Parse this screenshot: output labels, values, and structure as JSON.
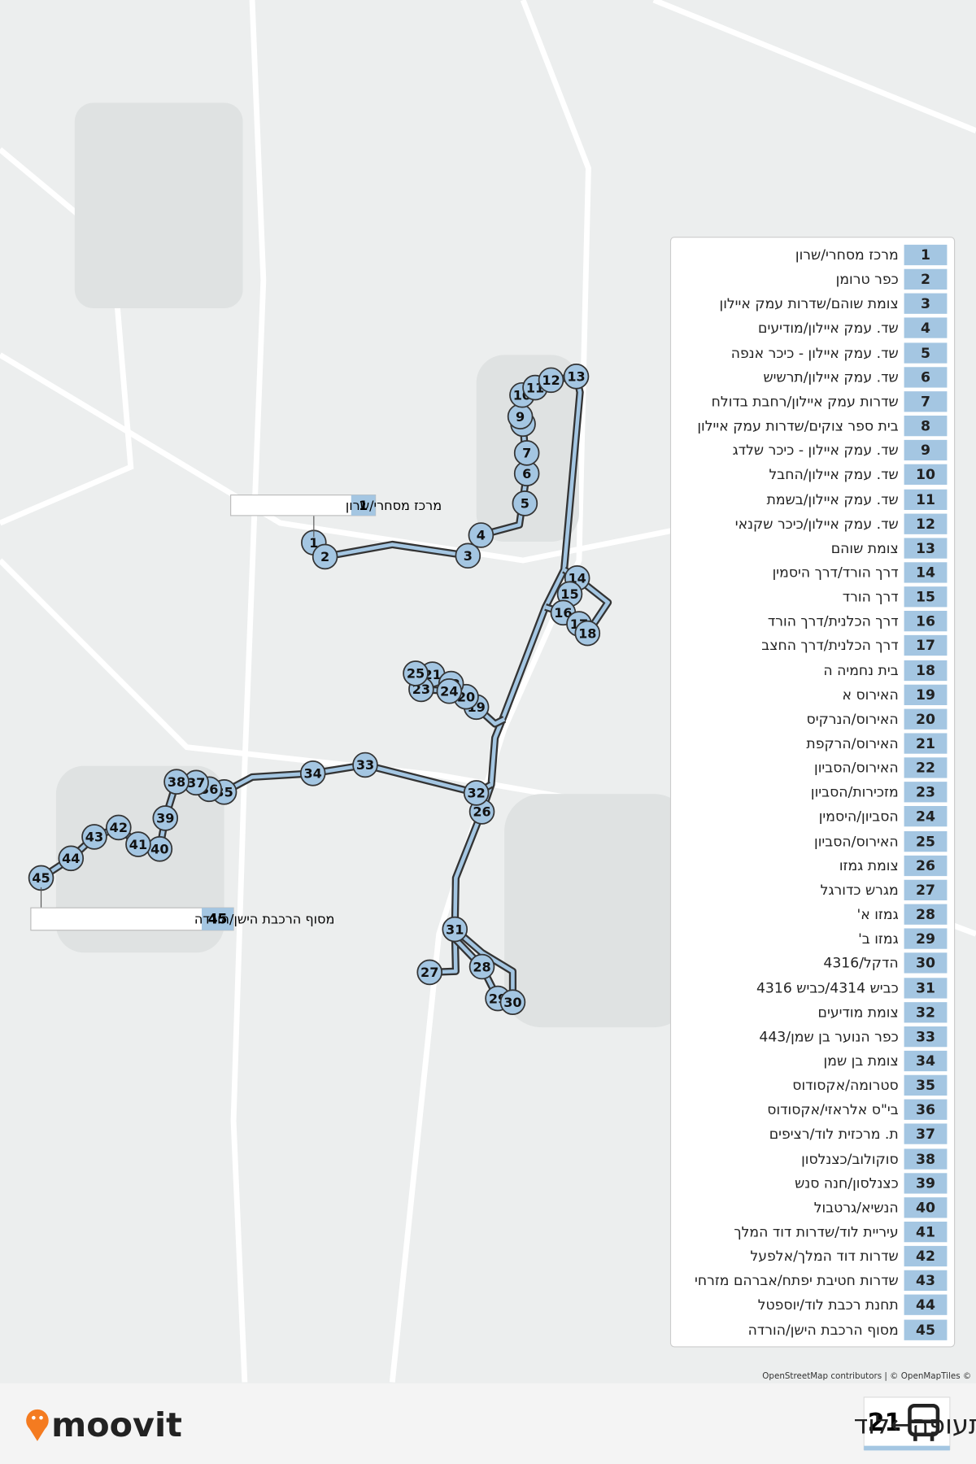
{
  "route": {
    "number": "21",
    "name": "קרית שדה התעופה←לוד"
  },
  "stops": [
    {
      "number": "1",
      "name": "מרכז מסחרי/שרון"
    },
    {
      "number": "2",
      "name": "כפר טרומן"
    },
    {
      "number": "3",
      "name": "צומת שוהם/שדרות עמק איילון"
    },
    {
      "number": "4",
      "name": "שד. עמק איילון/מודיעים"
    },
    {
      "number": "5",
      "name": "שד. עמק איילון - כיכר אנפה"
    },
    {
      "number": "6",
      "name": "שד. עמק איילון/תרשיש"
    },
    {
      "number": "7",
      "name": "שדרות עמק איילון/רחבת בדולח"
    },
    {
      "number": "8",
      "name": "בית ספר צוקים/שדרות עמק איילון"
    },
    {
      "number": "9",
      "name": "שד. עמק איילון - כיכר שלדג"
    },
    {
      "number": "10",
      "name": "שד. עמק איילון/החבל"
    },
    {
      "number": "11",
      "name": "שד. עמק איילון/בשמת"
    },
    {
      "number": "12",
      "name": "שד. עמק איילון/כיכר שקנאי"
    },
    {
      "number": "13",
      "name": "צומת שוהם"
    },
    {
      "number": "14",
      "name": "דרך הורד/דרך היסמין"
    },
    {
      "number": "15",
      "name": "דרך הורד"
    },
    {
      "number": "16",
      "name": "דרך הכלנית/דרך הורד"
    },
    {
      "number": "17",
      "name": "דרך הכלנית/דרך החצב"
    },
    {
      "number": "18",
      "name": "בית נחמיה ה"
    },
    {
      "number": "19",
      "name": "האירוס א"
    },
    {
      "number": "20",
      "name": "האירוס/הנרקיס"
    },
    {
      "number": "21",
      "name": "האירוס/הרקפת"
    },
    {
      "number": "22",
      "name": "האירוס/הסביון"
    },
    {
      "number": "23",
      "name": "מזכירות/הסביון"
    },
    {
      "number": "24",
      "name": "הסביון/היסמין"
    },
    {
      "number": "25",
      "name": "האירוס/הסביון"
    },
    {
      "number": "26",
      "name": "צומת גמזו"
    },
    {
      "number": "27",
      "name": "מגרש כדורגל"
    },
    {
      "number": "28",
      "name": "גמזו א'"
    },
    {
      "number": "29",
      "name": "גמזו ב'"
    },
    {
      "number": "30",
      "name": "הדקל/4316"
    },
    {
      "number": "31",
      "name": "כביש 4314/כביש 4316"
    },
    {
      "number": "32",
      "name": "צומת מודיעים"
    },
    {
      "number": "33",
      "name": "כפר הנוער בן שמן/443"
    },
    {
      "number": "34",
      "name": "צומת בן שמן"
    },
    {
      "number": "35",
      "name": "סטרומה/אקסודוס"
    },
    {
      "number": "36",
      "name": "בי\"ס אלראזי/אקסודוס"
    },
    {
      "number": "37",
      "name": "ת. מרכזית לוד/רציפים"
    },
    {
      "number": "38",
      "name": "סוקולוב/כצנלסון"
    },
    {
      "number": "39",
      "name": "כצנלסון/חנה סנש"
    },
    {
      "number": "40",
      "name": "הנשיא/גרטבול"
    },
    {
      "number": "41",
      "name": "עיריית לוד/שדרות דוד המלך"
    },
    {
      "number": "42",
      "name": "שדרות דוד המלך/אלפעל"
    },
    {
      "number": "43",
      "name": "שדרות חטיבת יפתח/אברהם מזרחי"
    },
    {
      "number": "44",
      "name": "תחנת רכבת לוד/יוספטל"
    },
    {
      "number": "45",
      "name": "מסוף הרכבת הישן/הורדה"
    }
  ],
  "attribution": "OpenStreetMap contributors | © OpenMapTiles ©",
  "brand": "moovit"
}
